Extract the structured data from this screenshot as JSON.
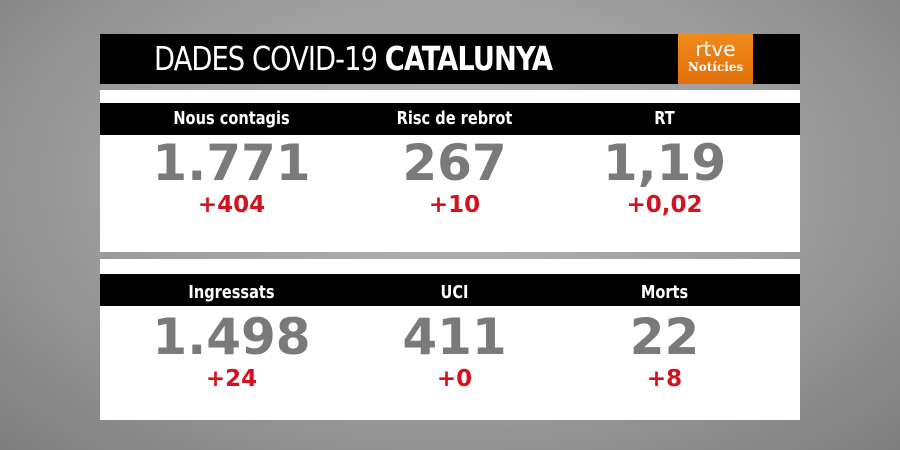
{
  "header": {
    "title_regular": "DADES COVID-19",
    "title_bold": "CATALUNYA",
    "logo": {
      "line1": "rtve",
      "line2": "Notícies",
      "color": "#e97d12"
    }
  },
  "panels": [
    {
      "metrics": [
        {
          "label": "Nous contagis",
          "value": "1.771",
          "delta": "+404"
        },
        {
          "label": "Risc de rebrot",
          "value": "267",
          "delta": "+10"
        },
        {
          "label": "RT",
          "value": "1,19",
          "delta": "+0,02"
        }
      ]
    },
    {
      "metrics": [
        {
          "label": "Ingressats",
          "value": "1.498",
          "delta": "+24"
        },
        {
          "label": "UCI",
          "value": "411",
          "delta": "+0"
        },
        {
          "label": "Morts",
          "value": "22",
          "delta": "+8"
        }
      ]
    }
  ],
  "colors": {
    "delta": "#d4111d",
    "value": "#7a7a7a"
  }
}
